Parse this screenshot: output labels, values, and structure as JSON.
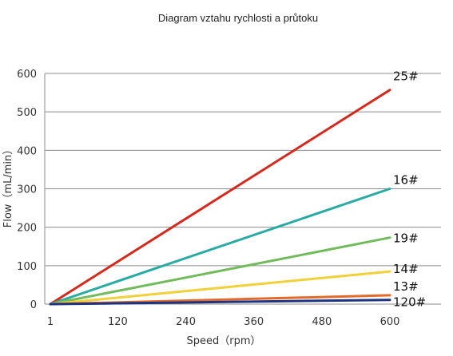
{
  "chart_data": {
    "type": "line",
    "title": "Diagram vztahu rychlosti a průtoku",
    "xlabel": "Speed（rpm）",
    "ylabel": "Flow（mL/min）",
    "x_ticks": [
      "1",
      "120",
      "240",
      "360",
      "480",
      "600"
    ],
    "x_tick_values": [
      1,
      120,
      240,
      360,
      480,
      600
    ],
    "y_ticks": [
      "0",
      "100",
      "200",
      "300",
      "400",
      "500",
      "600"
    ],
    "y_tick_values": [
      0,
      100,
      200,
      300,
      400,
      500,
      600
    ],
    "xlim": [
      1,
      600
    ],
    "ylim": [
      0,
      600
    ],
    "grid": true,
    "series": [
      {
        "name": "25#",
        "color": "#d42a1e",
        "x": [
          1,
          600
        ],
        "y": [
          0,
          557
        ]
      },
      {
        "name": "16#",
        "color": "#2aaba1",
        "x": [
          1,
          600
        ],
        "y": [
          0,
          300
        ]
      },
      {
        "name": "19#",
        "color": "#72bb5d",
        "x": [
          1,
          600
        ],
        "y": [
          0,
          173
        ]
      },
      {
        "name": "14#",
        "color": "#f1d03a",
        "x": [
          1,
          600
        ],
        "y": [
          0,
          85
        ]
      },
      {
        "name": "13#",
        "color": "#e46a2c",
        "x": [
          1,
          600
        ],
        "y": [
          0,
          23
        ]
      },
      {
        "name": "120#",
        "color": "#1e3480",
        "x": [
          1,
          600
        ],
        "y": [
          0,
          11
        ]
      }
    ]
  }
}
